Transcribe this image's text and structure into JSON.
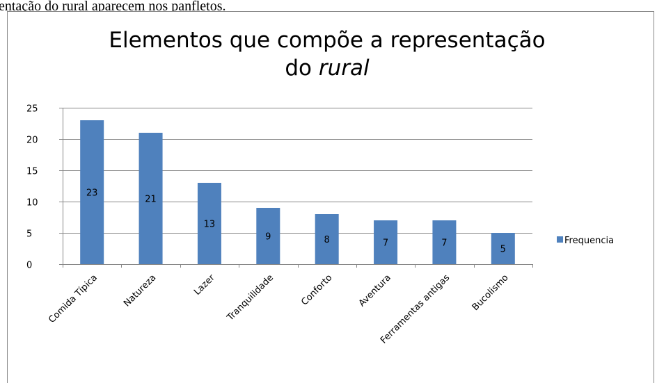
{
  "caption_fragment": "entação do rural aparecem nos panfletos.",
  "chart_data": {
    "type": "bar",
    "title": [
      "Elementos que compõe a representação",
      "do",
      "rural"
    ],
    "categories": [
      "Comida Típica",
      "Natureza",
      "Lazer",
      "Tranquilidade",
      "Conforto",
      "Aventura",
      "Ferramentas antigas",
      "Bucolismo"
    ],
    "series": [
      {
        "name": "Frequencia",
        "color": "#4f81bd",
        "values": [
          23,
          21,
          13,
          9,
          8,
          7,
          7,
          5
        ]
      }
    ],
    "ylim": [
      0,
      25
    ],
    "yticks": [
      0,
      5,
      10,
      15,
      20,
      25
    ],
    "grid": true,
    "legend": "right",
    "data_labels": true
  }
}
